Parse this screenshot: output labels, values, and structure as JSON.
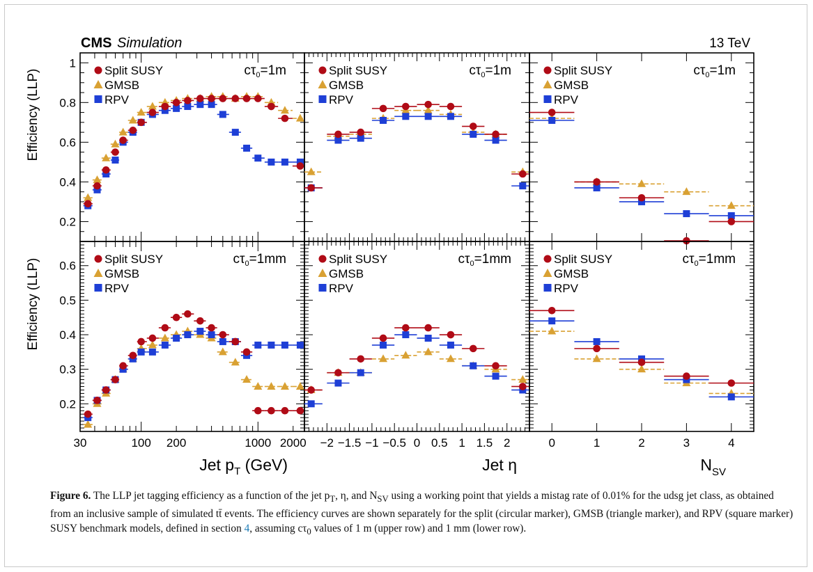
{
  "header": {
    "experiment": "CMS",
    "experiment_tag": "Simulation",
    "energy": "13 TeV"
  },
  "axes": {
    "ylabel": "Efficiency (LLP)",
    "xlabel_pt": "Jet p",
    "xlabel_pt_sub": "T",
    "xlabel_pt_unit": "(GeV)",
    "xlabel_eta": "Jet η",
    "xlabel_nsv": "N",
    "xlabel_nsv_sub": "SV"
  },
  "legend": {
    "entries": [
      "Split SUSY",
      "GMSB",
      "RPV"
    ],
    "ctau_symbol": "cτ",
    "ctau_sub": "0",
    "ctau_top": "=1m",
    "ctau_bottom": "=1mm"
  },
  "colors": {
    "split": "#b00b16",
    "gmsb": "#d9a133",
    "rpv": "#1e3fd6"
  },
  "chart_data": [
    {
      "type": "scatter",
      "panel": "top-pt",
      "ctau": "1m",
      "x_scale": "log",
      "xlim": [
        30,
        2500
      ],
      "ylim": [
        0.1,
        1.05
      ],
      "x": [
        35,
        42,
        50,
        60,
        70,
        85,
        100,
        125,
        160,
        200,
        250,
        320,
        400,
        500,
        640,
        800,
        1000,
        1300,
        1700,
        2300
      ],
      "series": [
        {
          "name": "Split SUSY",
          "marker": "circle",
          "values": [
            0.29,
            0.38,
            0.46,
            0.55,
            0.61,
            0.66,
            0.7,
            0.75,
            0.78,
            0.8,
            0.81,
            0.82,
            0.82,
            0.82,
            0.82,
            0.82,
            0.82,
            0.78,
            0.72,
            0.48
          ]
        },
        {
          "name": "GMSB",
          "marker": "triangle",
          "values": [
            0.32,
            0.41,
            0.52,
            0.59,
            0.65,
            0.71,
            0.75,
            0.78,
            0.8,
            0.81,
            0.82,
            0.82,
            0.83,
            0.83,
            0.82,
            0.83,
            0.83,
            0.8,
            0.76,
            0.72
          ]
        },
        {
          "name": "RPV",
          "marker": "square",
          "values": [
            0.28,
            0.36,
            0.44,
            0.51,
            0.6,
            0.65,
            0.7,
            0.74,
            0.76,
            0.77,
            0.78,
            0.79,
            0.79,
            0.74,
            0.65,
            0.57,
            0.52,
            0.5,
            0.5,
            0.5
          ]
        }
      ]
    },
    {
      "type": "scatter",
      "panel": "top-eta",
      "ctau": "1m",
      "xlim": [
        -2.5,
        2.5
      ],
      "ylim": [
        0.1,
        1.05
      ],
      "x": [
        -2.35,
        -1.75,
        -1.25,
        -0.75,
        -0.25,
        0.25,
        0.75,
        1.25,
        1.75,
        2.35
      ],
      "series": [
        {
          "name": "Split SUSY",
          "marker": "circle",
          "values": [
            0.37,
            0.64,
            0.65,
            0.77,
            0.78,
            0.79,
            0.78,
            0.68,
            0.64,
            0.44
          ]
        },
        {
          "name": "GMSB",
          "marker": "triangle",
          "values": [
            0.45,
            0.63,
            0.64,
            0.72,
            0.76,
            0.76,
            0.74,
            0.65,
            0.64,
            0.45
          ]
        },
        {
          "name": "RPV",
          "marker": "square",
          "values": [
            0.37,
            0.61,
            0.62,
            0.71,
            0.73,
            0.73,
            0.73,
            0.64,
            0.61,
            0.38
          ]
        }
      ]
    },
    {
      "type": "scatter",
      "panel": "top-nsv",
      "ctau": "1m",
      "xlim": [
        -0.5,
        4.5
      ],
      "ylim": [
        0.1,
        1.05
      ],
      "x": [
        0,
        1,
        2,
        3,
        4
      ],
      "series": [
        {
          "name": "Split SUSY",
          "marker": "circle",
          "values": [
            0.75,
            0.4,
            0.32,
            0.07,
            0.2
          ]
        },
        {
          "name": "GMSB",
          "marker": "triangle",
          "values": [
            0.72,
            0.4,
            0.39,
            0.35,
            0.28
          ]
        },
        {
          "name": "RPV",
          "marker": "square",
          "values": [
            0.71,
            0.37,
            0.3,
            0.24,
            0.23
          ]
        }
      ]
    },
    {
      "type": "scatter",
      "panel": "bottom-pt",
      "ctau": "1mm",
      "x_scale": "log",
      "xlim": [
        30,
        2500
      ],
      "ylim": [
        0.12,
        0.67
      ],
      "x": [
        35,
        42,
        50,
        60,
        70,
        85,
        100,
        125,
        160,
        200,
        250,
        320,
        400,
        500,
        640,
        800,
        1000,
        1300,
        1700,
        2300
      ],
      "series": [
        {
          "name": "Split SUSY",
          "marker": "circle",
          "values": [
            0.17,
            0.21,
            0.24,
            0.27,
            0.31,
            0.34,
            0.38,
            0.39,
            0.42,
            0.45,
            0.46,
            0.44,
            0.42,
            0.4,
            0.38,
            0.35,
            0.18,
            0.18,
            0.18,
            0.18
          ]
        },
        {
          "name": "GMSB",
          "marker": "triangle",
          "values": [
            0.14,
            0.2,
            0.23,
            0.27,
            0.3,
            0.33,
            0.36,
            0.37,
            0.39,
            0.4,
            0.41,
            0.4,
            0.39,
            0.35,
            0.32,
            0.27,
            0.25,
            0.25,
            0.25,
            0.25
          ]
        },
        {
          "name": "RPV",
          "marker": "square",
          "values": [
            0.16,
            0.21,
            0.24,
            0.27,
            0.3,
            0.33,
            0.35,
            0.35,
            0.37,
            0.39,
            0.4,
            0.41,
            0.4,
            0.38,
            0.38,
            0.34,
            0.37,
            0.37,
            0.37,
            0.37
          ]
        }
      ]
    },
    {
      "type": "scatter",
      "panel": "bottom-eta",
      "ctau": "1mm",
      "xlim": [
        -2.5,
        2.5
      ],
      "ylim": [
        0.12,
        0.67
      ],
      "x": [
        -2.35,
        -1.75,
        -1.25,
        -0.75,
        -0.25,
        0.25,
        0.75,
        1.25,
        1.75,
        2.35
      ],
      "series": [
        {
          "name": "Split SUSY",
          "marker": "circle",
          "values": [
            0.24,
            0.29,
            0.33,
            0.39,
            0.42,
            0.42,
            0.4,
            0.36,
            0.31,
            0.25
          ]
        },
        {
          "name": "GMSB",
          "marker": "triangle",
          "values": [
            0.24,
            0.29,
            0.29,
            0.33,
            0.34,
            0.35,
            0.33,
            0.31,
            0.3,
            0.27
          ]
        },
        {
          "name": "RPV",
          "marker": "square",
          "values": [
            0.2,
            0.26,
            0.29,
            0.37,
            0.4,
            0.39,
            0.37,
            0.31,
            0.28,
            0.24
          ]
        }
      ]
    },
    {
      "type": "scatter",
      "panel": "bottom-nsv",
      "ctau": "1mm",
      "xlim": [
        -0.5,
        4.5
      ],
      "ylim": [
        0.12,
        0.67
      ],
      "x": [
        0,
        1,
        2,
        3,
        4
      ],
      "series": [
        {
          "name": "Split SUSY",
          "marker": "circle",
          "values": [
            0.47,
            0.36,
            0.32,
            0.28,
            0.26
          ]
        },
        {
          "name": "GMSB",
          "marker": "triangle",
          "values": [
            0.41,
            0.33,
            0.3,
            0.26,
            0.23
          ]
        },
        {
          "name": "RPV",
          "marker": "square",
          "values": [
            0.44,
            0.38,
            0.33,
            0.27,
            0.22
          ]
        }
      ]
    }
  ],
  "ticks": {
    "top_y": [
      "0.2",
      "0.4",
      "0.6",
      "0.8",
      "1"
    ],
    "bottom_y": [
      "0.2",
      "0.3",
      "0.4",
      "0.5",
      "0.6"
    ],
    "pt": [
      "30",
      "100",
      "200",
      "1000",
      "2000"
    ],
    "eta": [
      "−2",
      "−1.5",
      "−1",
      "−0.5",
      "0",
      "0.5",
      "1",
      "1.5",
      "2"
    ],
    "nsv": [
      "0",
      "1",
      "2",
      "3",
      "4"
    ]
  },
  "caption": {
    "label": "Figure 6.",
    "text_1": " The LLP jet tagging efficiency as a function of the jet p",
    "text_1_sub": "T",
    "text_2": ", η, and N",
    "text_2_sub": "SV",
    "text_3": " using a working point that yields a mistag rate of 0.01% for the udsg jet class, as obtained from an inclusive sample of simulated tt̄ events. The efficiency curves are shown separately for the split (circular marker), GMSB (triangle marker), and RPV (square marker) SUSY benchmark models, defined in section ",
    "section_ref": "4",
    "text_4": ", assuming cτ",
    "text_4_sub": "0",
    "text_5": " values of 1 m (upper row) and 1 mm (lower row)."
  }
}
